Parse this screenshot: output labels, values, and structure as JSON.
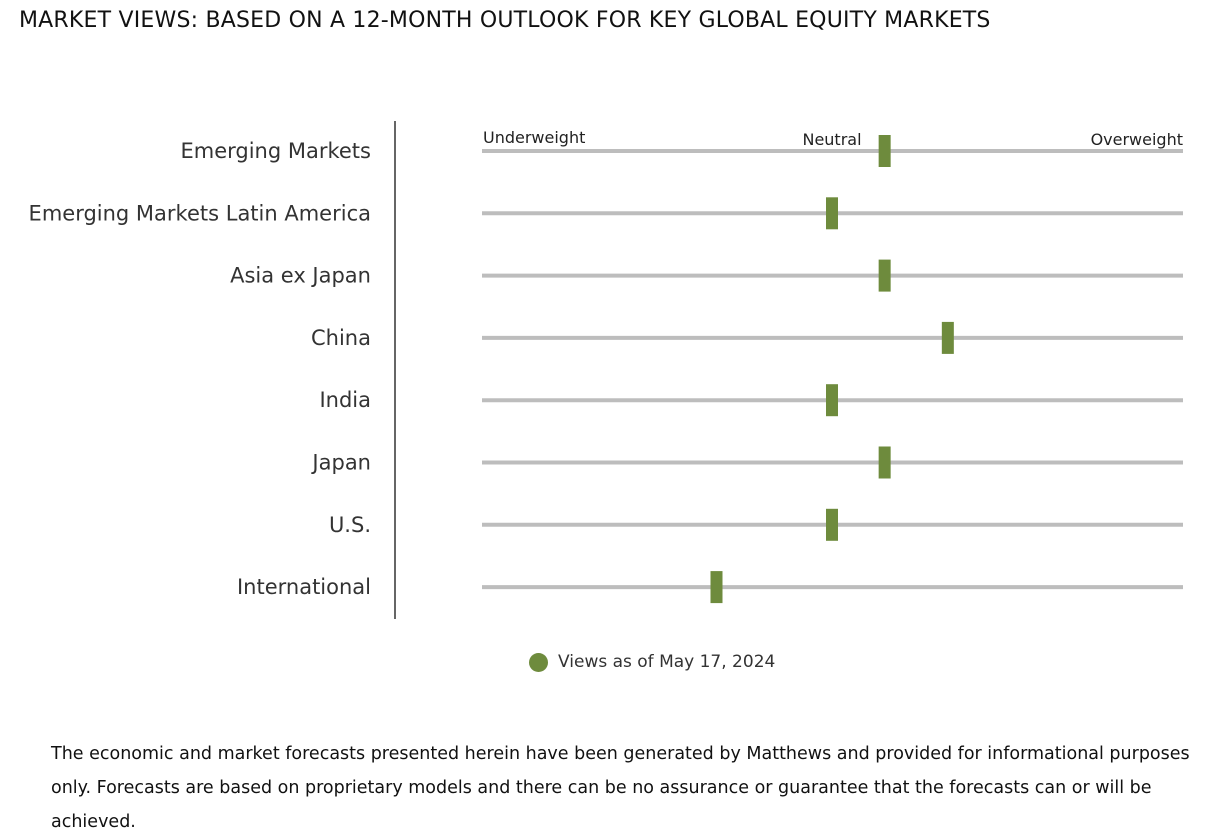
{
  "title": "MARKET VIEWS: BASED ON A 12-MONTH OUTLOOK FOR KEY GLOBAL EQUITY MARKETS",
  "colors": {
    "marker": "#6e8b3d",
    "track": "#bdbdbd",
    "axis": "#333333"
  },
  "chart_data": {
    "type": "scale",
    "scale_labels": {
      "left": "Underweight",
      "center": "Neutral",
      "right": "Overweight"
    },
    "scale_range": [
      -1,
      1
    ],
    "categories": [
      "Emerging Markets",
      "Emerging Markets Latin America",
      "Asia ex Japan",
      "China",
      "India",
      "Japan",
      "U.S.",
      "International"
    ],
    "series": [
      {
        "name": "Views as of May 17, 2024",
        "values": [
          0.15,
          0.0,
          0.15,
          0.33,
          0.0,
          0.15,
          0.0,
          -0.33
        ]
      }
    ]
  },
  "legend": {
    "label": "Views as of May 17, 2024"
  },
  "footnote": "The economic and market forecasts presented herein have been generated by Matthews and provided for informational purposes only. Forecasts are based on proprietary models and there can be no assurance or guarantee that the forecasts can or will be achieved."
}
